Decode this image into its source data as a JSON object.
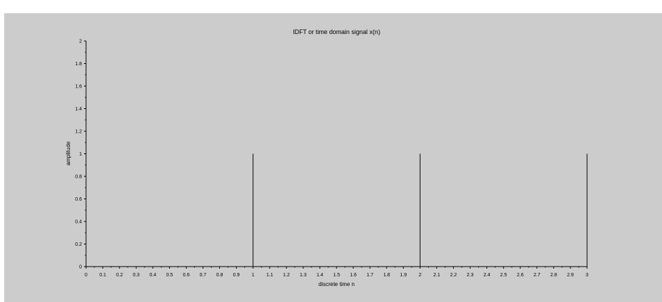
{
  "chart_data": {
    "type": "stem",
    "title": "IDFT or time domain signal x(n)",
    "xlabel": "discrete time n",
    "ylabel": "amplitude",
    "xlim": [
      0,
      3
    ],
    "ylim": [
      0,
      2
    ],
    "x_ticks": [
      "0",
      "0.1",
      "0.2",
      "0.3",
      "0.4",
      "0.5",
      "0.6",
      "0.7",
      "0.8",
      "0.9",
      "1",
      "1.1",
      "1.2",
      "1.3",
      "1.4",
      "1.5",
      "1.6",
      "1.7",
      "1.8",
      "1.9",
      "2",
      "2.1",
      "2.2",
      "2.3",
      "2.4",
      "2.5",
      "2.6",
      "2.7",
      "2.8",
      "2.9",
      "3"
    ],
    "y_ticks": [
      "0",
      "0.2",
      "0.4",
      "0.6",
      "0.8",
      "1",
      "1.2",
      "1.4",
      "1.6",
      "1.8",
      "2"
    ],
    "x": [
      0,
      1,
      2,
      3
    ],
    "y": [
      0,
      1,
      1,
      1
    ],
    "grid": false,
    "colors": {
      "background": "#cccccc",
      "stem": "#000000",
      "axis": "#000000"
    }
  }
}
